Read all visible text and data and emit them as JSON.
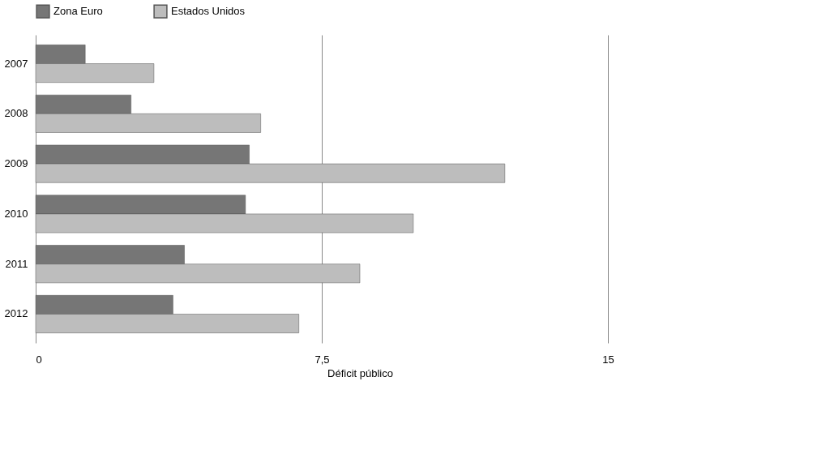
{
  "chart_data": {
    "type": "bar",
    "orientation": "horizontal",
    "xlabel": "Déficit público",
    "categories": [
      "2007",
      "2008",
      "2009",
      "2010",
      "2011",
      "2012"
    ],
    "series": [
      {
        "name": "Zona Euro",
        "color": "#767676",
        "values": [
          1.3,
          2.5,
          5.6,
          5.5,
          3.9,
          3.6
        ]
      },
      {
        "name": "Estados Unidos",
        "color": "#bdbdbd",
        "values": [
          3.1,
          5.9,
          12.3,
          9.9,
          8.5,
          6.9
        ]
      }
    ],
    "xlim": [
      0,
      17
    ],
    "xticks": [
      0,
      {
        "value": 7.5,
        "label": "7,5"
      },
      15
    ],
    "grid": "x",
    "legend": "top"
  }
}
